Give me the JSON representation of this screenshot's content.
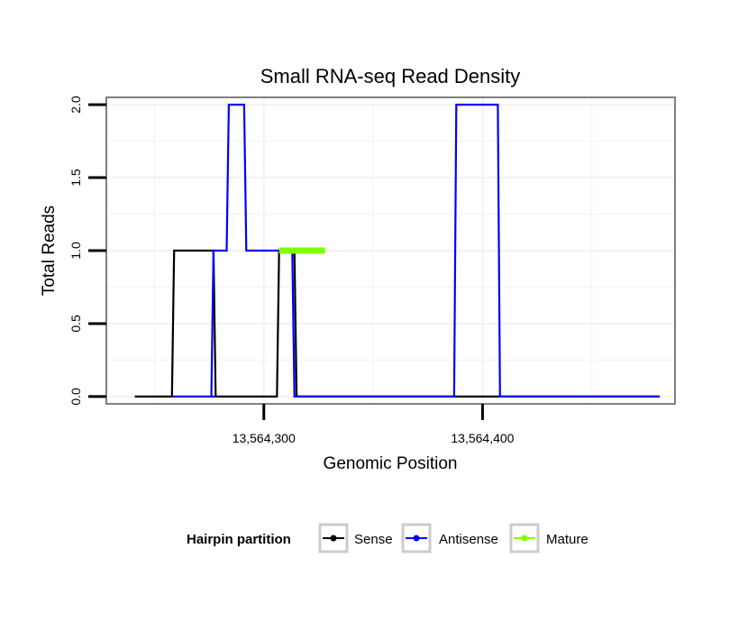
{
  "chart_data": {
    "type": "line",
    "title": "Small RNA-seq Read Density",
    "xlabel": "Genomic Position",
    "ylabel": "Total Reads",
    "xlim": [
      13564228,
      13564488
    ],
    "ylim": [
      -0.05,
      2.05
    ],
    "x_ticks": [
      13564300,
      13564400
    ],
    "x_tick_labels": [
      "13,564,300",
      "13,564,400"
    ],
    "y_ticks": [
      0,
      0.5,
      1,
      1.5,
      2
    ],
    "y_tick_labels": [
      "0.0",
      "0.5",
      "1.0",
      "1.5",
      "2.0"
    ],
    "grid": true,
    "series": [
      {
        "name": "Sense",
        "color": "#000000",
        "x": [
          13564241,
          13564258,
          13564259,
          13564277,
          13564278,
          13564306,
          13564307,
          13564314,
          13564315,
          13564353,
          13564354,
          13564362,
          13564363,
          13564391,
          13564392,
          13564425,
          13564426,
          13564481
        ],
        "y": [
          0,
          0,
          1,
          1,
          0,
          0,
          1,
          1,
          0,
          0,
          0,
          0,
          0,
          0,
          0,
          0,
          0,
          0
        ]
      },
      {
        "name": "Antisense",
        "color": "#0000ff",
        "x": [
          13564258,
          13564277,
          13564278,
          13564276,
          13564277,
          13564283,
          13564284,
          13564291,
          13564292,
          13564307,
          13564308,
          13564313,
          13564314,
          13564317,
          13564318,
          13564324,
          13564325,
          13564387,
          13564388,
          13564407,
          13564408,
          13564481
        ],
        "y": [
          0,
          0,
          0,
          0,
          1,
          1,
          2,
          2,
          1,
          1,
          1,
          1,
          0,
          0,
          0,
          0,
          0,
          0,
          2,
          2,
          0,
          0
        ]
      },
      {
        "name": "Mature",
        "color": "#7fff00",
        "x": [
          13564307,
          13564328
        ],
        "y": [
          1,
          1
        ]
      }
    ],
    "legend": {
      "title": "Hairpin partition",
      "position": "bottom",
      "entries": [
        "Sense",
        "Antisense",
        "Mature"
      ]
    }
  },
  "colors": {
    "panel_border": "#808080",
    "grid": "#f2f2f2",
    "legend_key_border": "#cccccc"
  }
}
